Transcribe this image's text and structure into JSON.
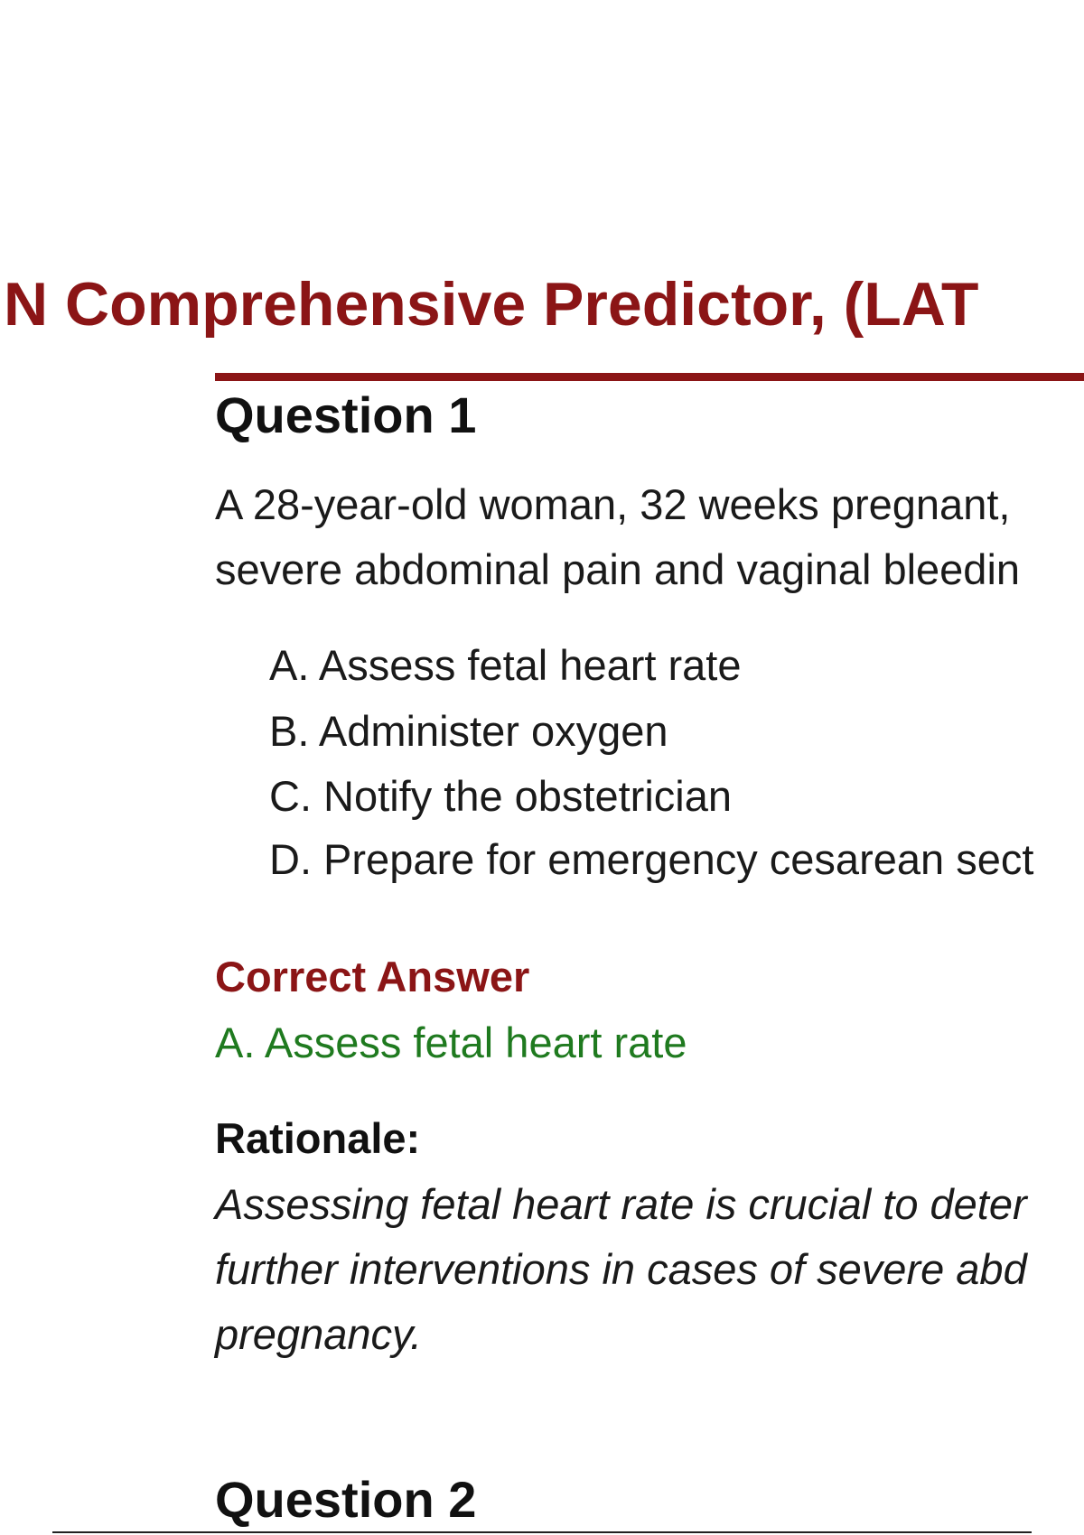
{
  "header": {
    "title": "N Comprehensive Predictor, (LAT"
  },
  "questions": [
    {
      "heading": "Question 1",
      "text": [
        "A 28-year-old woman, 32 weeks pregnant,",
        "severe abdominal pain and vaginal bleedin"
      ],
      "options": [
        "A. Assess fetal heart rate",
        "B. Administer oxygen",
        "C. Notify the obstetrician",
        "D. Prepare for emergency cesarean sect"
      ],
      "correct_answer_label": "Correct Answer",
      "correct_answer": "A. Assess fetal heart rate",
      "rationale_label": "Rationale:",
      "rationale": [
        "Assessing fetal heart rate is crucial to deter",
        "further interventions in cases of severe abd",
        "pregnancy."
      ]
    },
    {
      "heading": "Question 2"
    }
  ]
}
